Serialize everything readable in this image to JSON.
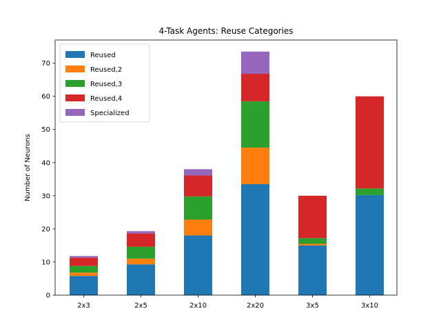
{
  "chart_data": {
    "type": "bar",
    "stacked": true,
    "title": "4-Task Agents: Reuse Categories",
    "xlabel": "",
    "ylabel": "Number of Neurons",
    "categories": [
      "2x3",
      "2x5",
      "2x10",
      "2x20",
      "3x5",
      "3x10"
    ],
    "ylim": [
      0,
      77
    ],
    "yticks": [
      0,
      10,
      20,
      30,
      40,
      50,
      60,
      70
    ],
    "grid": false,
    "legend_position": "top-left",
    "series": [
      {
        "name": "Reused",
        "color": "#1f77b4",
        "values": [
          5.8,
          9.3,
          18.0,
          33.5,
          15.0,
          30.2
        ]
      },
      {
        "name": "Reused,2",
        "color": "#ff7f0e",
        "values": [
          1.0,
          1.7,
          4.8,
          11.0,
          0.5,
          0.0
        ]
      },
      {
        "name": "Reused,3",
        "color": "#2ca02c",
        "values": [
          2.0,
          3.6,
          7.0,
          14.0,
          1.7,
          2.0
        ]
      },
      {
        "name": "Reused,4",
        "color": "#d62728",
        "values": [
          2.5,
          4.0,
          6.3,
          8.3,
          12.8,
          27.8
        ]
      },
      {
        "name": "Specialized",
        "color": "#9467bd",
        "values": [
          0.5,
          0.7,
          1.9,
          6.7,
          0.0,
          0.0
        ]
      }
    ]
  }
}
